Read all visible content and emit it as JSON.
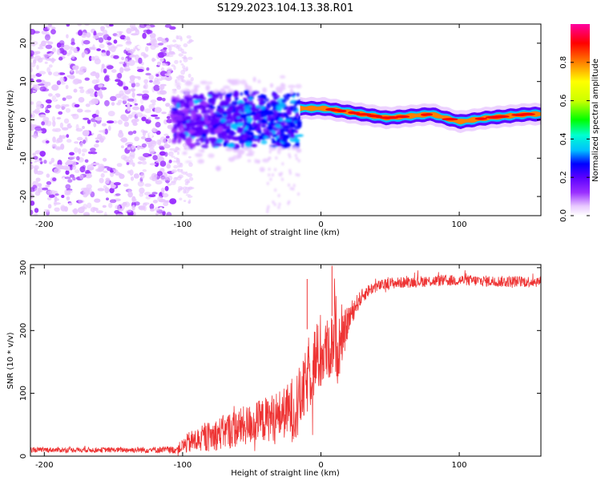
{
  "title": "S129.2023.104.13.38.R01",
  "chart_data": [
    {
      "type": "heatmap",
      "xlabel": "Height of straight line (km)",
      "ylabel": "Frequency (Hz)",
      "xlim": [
        -210,
        159
      ],
      "ylim": [
        -25,
        25
      ],
      "xticks": [
        -200,
        -100,
        0,
        100
      ],
      "yticks": [
        -20,
        -10,
        0,
        10,
        20
      ],
      "colorbar": {
        "label": "Normalized spectral amplitude",
        "range": [
          0,
          1
        ],
        "ticks": [
          "0.0",
          "0.2",
          "0.4",
          "0.6",
          "0.8"
        ],
        "colormap": [
          "#ffffff",
          "#e8c8ff",
          "#9b30ff",
          "#5a00ff",
          "#0000ff",
          "#00bfff",
          "#00ffd0",
          "#00ff00",
          "#ccff00",
          "#ffff00",
          "#ff8000",
          "#ff0000",
          "#ff00a0"
        ]
      },
      "regions": [
        {
          "name": "noise",
          "x": [
            -210,
            -107
          ],
          "freq_center": 0,
          "freq_halfwidth": 25,
          "amplitude": 0.12
        },
        {
          "name": "transition",
          "x": [
            -107,
            -15
          ],
          "freq_center": 0,
          "freq_halfwidth": 8,
          "amplitude": 0.2
        },
        {
          "name": "carrier",
          "x": [
            -15,
            159
          ],
          "freq_center": 1,
          "freq_halfwidth": 1.5,
          "amplitude": 0.85
        }
      ],
      "carrier_peaks": [
        {
          "x": 2,
          "y": 3
        },
        {
          "x": 48,
          "y": 0.5
        },
        {
          "x": 80,
          "y": 1.5
        },
        {
          "x": 100,
          "y": -0.5
        },
        {
          "x": 120,
          "y": 0.5
        },
        {
          "x": 150,
          "y": 1.5
        }
      ]
    },
    {
      "type": "line",
      "xlabel": "Height of straight line (km)",
      "ylabel": "SNR (10 * v/v)",
      "xlim": [
        -210,
        159
      ],
      "ylim": [
        0,
        305
      ],
      "xticks": [
        -200,
        -100,
        0,
        100
      ],
      "yticks": [
        0,
        100,
        200,
        300
      ],
      "color": "#ee3333",
      "series": [
        {
          "x": [
            -210,
            -150,
            -105,
            -95,
            -85,
            -75,
            -65,
            -55,
            -45,
            -35,
            -25,
            -18,
            -14,
            -10,
            -5,
            0,
            5,
            8,
            10,
            12,
            15,
            18,
            20,
            25,
            30,
            35,
            40,
            50,
            70,
            100,
            130,
            159
          ],
          "values": [
            10,
            10,
            10,
            22,
            28,
            35,
            42,
            48,
            55,
            62,
            70,
            78,
            95,
            120,
            150,
            158,
            170,
            175,
            215,
            165,
            180,
            205,
            218,
            240,
            255,
            265,
            270,
            275,
            278,
            280,
            278,
            278
          ],
          "noise": [
            4,
            4,
            6,
            18,
            22,
            26,
            30,
            32,
            34,
            38,
            42,
            60,
            50,
            55,
            60,
            55,
            50,
            55,
            80,
            50,
            40,
            30,
            25,
            15,
            12,
            10,
            9,
            9,
            9,
            9,
            9,
            9
          ]
        }
      ],
      "annotations": [
        {
          "type": "spike",
          "x": -10,
          "y": 282
        },
        {
          "type": "spike",
          "x": 8,
          "y": 303
        }
      ]
    }
  ]
}
